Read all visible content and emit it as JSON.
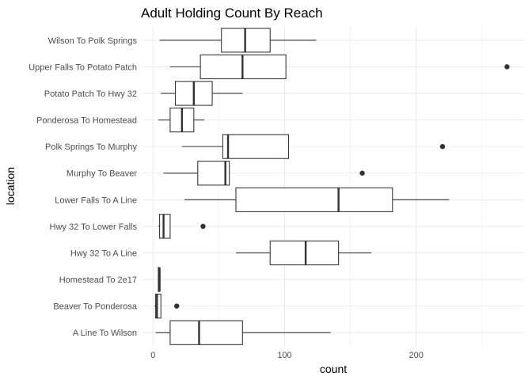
{
  "chart_data": {
    "type": "boxplot",
    "title": "Adult Holding Count By Reach",
    "xlabel": "count",
    "ylabel": "location",
    "xlim": [
      -8,
      282
    ],
    "x_ticks": [
      0,
      100,
      200
    ],
    "x_minor_ticks": [
      50,
      150,
      250
    ],
    "grid": true,
    "legend": "none",
    "colors": {
      "box_stroke": "#333333",
      "box_fill": "#ffffff",
      "grid": "#ebebeb"
    },
    "categories": [
      "Wilson To Polk Springs",
      "Upper Falls To Potato Patch",
      "Potato Patch To Hwy 32",
      "Ponderosa To Homestead",
      "Polk Springs To Murphy",
      "Murphy To Beaver",
      "Lower Falls To A Line",
      "Hwy 32 To Lower Falls",
      "Hwy 32 To A Line",
      "Homestead To 2e17",
      "Beaver To Ponderosa",
      "A Line To Wilson"
    ],
    "boxes": [
      {
        "category": "Wilson To Polk Springs",
        "whisker_low": 5,
        "q1": 52,
        "median": 70,
        "q3": 89,
        "whisker_high": 124,
        "outliers": []
      },
      {
        "category": "Upper Falls To Potato Patch",
        "whisker_low": 13,
        "q1": 36,
        "median": 68,
        "q3": 101,
        "whisker_high": 101,
        "outliers": [
          269
        ]
      },
      {
        "category": "Potato Patch To Hwy 32",
        "whisker_low": 6,
        "q1": 17,
        "median": 31,
        "q3": 45,
        "whisker_high": 68,
        "outliers": []
      },
      {
        "category": "Ponderosa To Homestead",
        "whisker_low": 4,
        "q1": 13,
        "median": 22,
        "q3": 31,
        "whisker_high": 39,
        "outliers": []
      },
      {
        "category": "Polk Springs To Murphy",
        "whisker_low": 22,
        "q1": 53,
        "median": 57,
        "q3": 103,
        "whisker_high": 103,
        "outliers": [
          220
        ]
      },
      {
        "category": "Murphy To Beaver",
        "whisker_low": 8,
        "q1": 34,
        "median": 55,
        "q3": 58,
        "whisker_high": 58,
        "outliers": [
          159
        ]
      },
      {
        "category": "Lower Falls To A Line",
        "whisker_low": 24,
        "q1": 63,
        "median": 141,
        "q3": 182,
        "whisker_high": 225,
        "outliers": []
      },
      {
        "category": "Hwy 32 To Lower Falls",
        "whisker_low": 4,
        "q1": 5,
        "median": 8,
        "q3": 13,
        "whisker_high": 13,
        "outliers": [
          38
        ]
      },
      {
        "category": "Hwy 32 To A Line",
        "whisker_low": 63,
        "q1": 89,
        "median": 116,
        "q3": 141,
        "whisker_high": 166,
        "outliers": []
      },
      {
        "category": "Homestead To 2e17",
        "whisker_low": 4,
        "q1": 4,
        "median": 5,
        "q3": 5,
        "whisker_high": 5,
        "outliers": []
      },
      {
        "category": "Beaver To Ponderosa",
        "whisker_low": 1,
        "q1": 2,
        "median": 3,
        "q3": 6,
        "whisker_high": 6,
        "outliers": [
          18
        ]
      },
      {
        "category": "A Line To Wilson",
        "whisker_low": 2,
        "q1": 13,
        "median": 35,
        "q3": 68,
        "whisker_high": 135,
        "outliers": []
      }
    ]
  }
}
